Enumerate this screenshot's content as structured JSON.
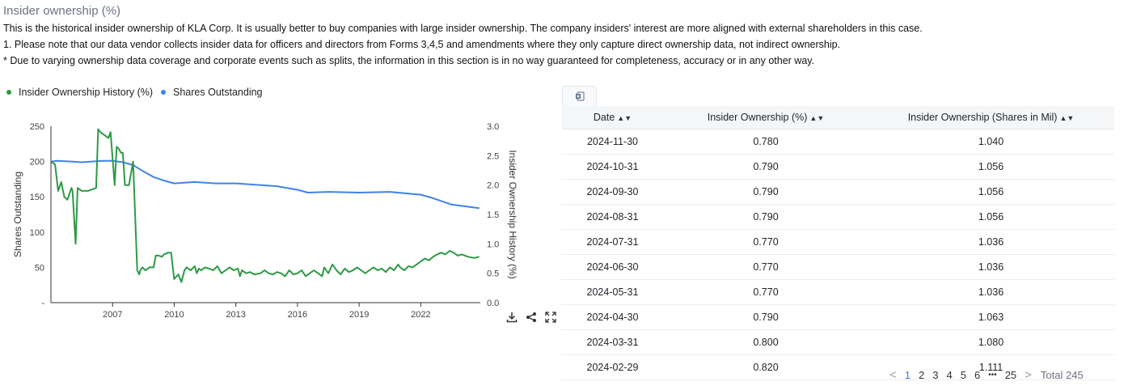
{
  "section": {
    "title": "Insider ownership (%)",
    "desc1": "This is the historical insider ownership of KLA Corp. It is usually better to buy companies with large insider ownership. The company insiders' interest are more aligned with external shareholders in this case.",
    "desc2": "1. Please note that our data vendor collects insider data for officers and directors from Forms 3,4,5 and amendments where they only capture direct ownership data, not indirect ownership.",
    "desc3": "* Due to varying ownership data coverage and corporate events such as splits, the information in this section is in no way guaranteed for completeness, accuracy or in any other way."
  },
  "legend": {
    "items": [
      {
        "label": "Insider Ownership History (%)",
        "color": "#2e9a45"
      },
      {
        "label": "Shares Outstanding",
        "color": "#3f84e5"
      }
    ]
  },
  "chart_data": {
    "type": "line",
    "xlabel": "",
    "ylabel": "Shares Outstanding",
    "y2label": "Insider Ownership History (%)",
    "x_ticks": [
      "2007",
      "2010",
      "2013",
      "2016",
      "2019",
      "2022"
    ],
    "y_ticks": [
      "-",
      "50",
      "100",
      "150",
      "200",
      "250"
    ],
    "y2_ticks": [
      "0.0",
      "0.5",
      "1.0",
      "1.5",
      "2.0",
      "2.5",
      "3.0"
    ],
    "xlim": [
      2004.0,
      2024.9
    ],
    "ylim": [
      0,
      250
    ],
    "y2lim": [
      0,
      3.0
    ],
    "series": [
      {
        "name": "Shares Outstanding",
        "axis": "left",
        "color": "#3f84e5",
        "x": [
          2004.0,
          2004.3,
          2005.0,
          2005.5,
          2006.0,
          2006.5,
          2007.0,
          2007.5,
          2008.0,
          2008.5,
          2009.0,
          2009.5,
          2010.0,
          2011.0,
          2012.0,
          2013.0,
          2014.0,
          2015.0,
          2016.0,
          2016.5,
          2017.5,
          2019.0,
          2020.5,
          2022.0,
          2022.5,
          2023.5,
          2024.85
        ],
        "y": [
          200,
          201,
          200,
          199,
          200,
          201,
          201,
          199,
          195,
          186,
          178,
          173,
          169,
          171,
          169,
          169,
          167,
          165,
          160,
          156,
          157,
          156,
          157,
          153,
          149,
          139,
          134
        ]
      },
      {
        "name": "Insider Ownership History (%)",
        "axis": "right",
        "color": "#2e9a45",
        "x": [
          2004.0,
          2004.2,
          2004.35,
          2004.5,
          2004.65,
          2004.8,
          2005.0,
          2005.05,
          2005.2,
          2005.3,
          2005.5,
          2005.8,
          2006.2,
          2006.3,
          2006.4,
          2006.8,
          2006.9,
          2007.1,
          2007.2,
          2007.3,
          2007.4,
          2007.5,
          2007.6,
          2007.8,
          2008.0,
          2008.2,
          2008.3,
          2008.35,
          2008.45,
          2008.6,
          2008.8,
          2009.0,
          2009.1,
          2009.25,
          2009.4,
          2009.5,
          2009.7,
          2009.85,
          2010.0,
          2010.2,
          2010.35,
          2010.5,
          2010.6,
          2010.8,
          2011.0,
          2011.1,
          2011.2,
          2011.3,
          2011.5,
          2011.7,
          2011.9,
          2012.1,
          2012.3,
          2012.5,
          2012.7,
          2012.9,
          2013.1,
          2013.2,
          2013.3,
          2013.5,
          2013.7,
          2013.9,
          2014.2,
          2014.4,
          2014.6,
          2014.8,
          2015.0,
          2015.2,
          2015.4,
          2015.6,
          2015.8,
          2016.0,
          2016.2,
          2016.4,
          2016.6,
          2016.8,
          2017.0,
          2017.2,
          2017.3,
          2017.5,
          2017.7,
          2017.9,
          2018.1,
          2018.3,
          2018.5,
          2018.7,
          2018.9,
          2019.1,
          2019.3,
          2019.5,
          2019.7,
          2019.9,
          2020.1,
          2020.3,
          2020.5,
          2020.7,
          2020.9,
          2021.0,
          2021.2,
          2021.4,
          2021.6,
          2021.8,
          2022.0,
          2022.2,
          2022.4,
          2022.6,
          2022.8,
          2023.0,
          2023.2,
          2023.4,
          2023.6,
          2023.8,
          2024.0,
          2024.3,
          2024.6,
          2024.85
        ],
        "y": [
          2.4,
          2.35,
          1.9,
          2.05,
          1.8,
          1.75,
          1.95,
          1.9,
          1.0,
          1.95,
          1.9,
          1.9,
          1.95,
          2.95,
          2.9,
          2.8,
          2.9,
          2.0,
          2.65,
          2.62,
          2.55,
          2.55,
          2.0,
          2.0,
          2.4,
          0.55,
          0.48,
          0.55,
          0.6,
          0.55,
          0.6,
          0.6,
          0.8,
          0.8,
          0.78,
          0.82,
          0.85,
          0.85,
          0.4,
          0.48,
          0.35,
          0.55,
          0.6,
          0.55,
          0.62,
          0.5,
          0.58,
          0.55,
          0.6,
          0.58,
          0.55,
          0.62,
          0.5,
          0.55,
          0.6,
          0.55,
          0.58,
          0.45,
          0.55,
          0.5,
          0.52,
          0.48,
          0.5,
          0.55,
          0.5,
          0.48,
          0.52,
          0.5,
          0.45,
          0.55,
          0.48,
          0.5,
          0.55,
          0.45,
          0.5,
          0.55,
          0.5,
          0.45,
          0.6,
          0.5,
          0.65,
          0.55,
          0.48,
          0.58,
          0.52,
          0.55,
          0.6,
          0.55,
          0.5,
          0.55,
          0.6,
          0.55,
          0.58,
          0.52,
          0.6,
          0.55,
          0.65,
          0.6,
          0.55,
          0.62,
          0.6,
          0.65,
          0.7,
          0.75,
          0.72,
          0.78,
          0.82,
          0.85,
          0.82,
          0.88,
          0.85,
          0.8,
          0.82,
          0.78,
          0.76,
          0.78
        ]
      }
    ]
  },
  "toolbar": {
    "download_icon": "download-icon",
    "share_icon": "share-icon",
    "fullscreen_icon": "fullscreen-icon"
  },
  "table": {
    "export_icon": "excel-export-icon",
    "headers": [
      "Date",
      "Insider Ownership (%)",
      "Insider Ownership (Shares in Mil)"
    ],
    "rows": [
      [
        "2024-11-30",
        "0.780",
        "1.040"
      ],
      [
        "2024-10-31",
        "0.790",
        "1.056"
      ],
      [
        "2024-09-30",
        "0.790",
        "1.056"
      ],
      [
        "2024-08-31",
        "0.790",
        "1.056"
      ],
      [
        "2024-07-31",
        "0.770",
        "1.036"
      ],
      [
        "2024-06-30",
        "0.770",
        "1.036"
      ],
      [
        "2024-05-31",
        "0.770",
        "1.036"
      ],
      [
        "2024-04-30",
        "0.790",
        "1.063"
      ],
      [
        "2024-03-31",
        "0.800",
        "1.080"
      ],
      [
        "2024-02-29",
        "0.820",
        "1.111"
      ]
    ]
  },
  "pagination": {
    "prev": "<",
    "pages": [
      "1",
      "2",
      "3",
      "4",
      "5",
      "6"
    ],
    "ellipsis": "•••",
    "last": "25",
    "next": ">",
    "total": "Total 245"
  }
}
